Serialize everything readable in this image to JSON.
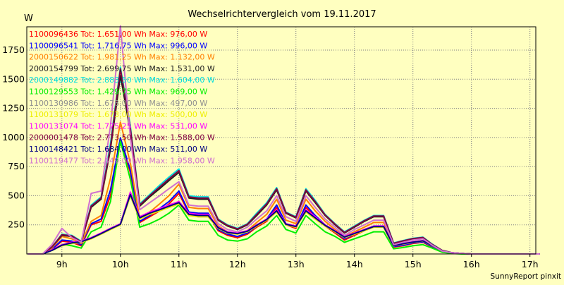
{
  "chart_data": {
    "type": "line",
    "title": "Wechselrichtervergleich vom 19.11.2017",
    "ylabel": "W",
    "xlabel": "",
    "footer": "SunnyReport pinxit",
    "ylim": [
      0,
      1950
    ],
    "xlim": [
      8.4,
      17.1
    ],
    "yticks": [
      250,
      500,
      750,
      1000,
      1250,
      1500,
      1750
    ],
    "xticks": [
      9,
      10,
      11,
      12,
      13,
      14,
      15,
      16,
      17
    ],
    "xtick_labels": [
      "9h",
      "10h",
      "11h",
      "12h",
      "13h",
      "14h",
      "15h",
      "16h",
      "17h"
    ],
    "grid": true,
    "legend_placement": "top-left",
    "x": [
      8.42,
      8.67,
      8.83,
      9.0,
      9.17,
      9.33,
      9.5,
      9.67,
      9.83,
      10.0,
      10.17,
      10.33,
      10.5,
      10.67,
      10.83,
      11.0,
      11.17,
      11.33,
      11.5,
      11.67,
      11.83,
      12.0,
      12.17,
      12.33,
      12.5,
      12.67,
      12.83,
      13.0,
      13.17,
      13.33,
      13.5,
      13.67,
      13.83,
      14.0,
      14.17,
      14.33,
      14.5,
      14.67,
      14.83,
      15.0,
      15.17,
      15.33,
      15.5,
      15.67,
      15.83,
      16.0,
      16.17,
      16.33,
      16.5,
      16.67,
      16.83,
      17.0,
      17.17
    ],
    "series": [
      {
        "name": "1100096436 Tot: 1.651,00 Wh Max: 976,00 W",
        "color": "#ff0000",
        "values": [
          0,
          0,
          40,
          110,
          100,
          70,
          250,
          280,
          500,
          976,
          700,
          270,
          320,
          370,
          430,
          520,
          350,
          340,
          340,
          200,
          160,
          140,
          170,
          230,
          280,
          400,
          250,
          220,
          400,
          320,
          240,
          180,
          120,
          160,
          200,
          230,
          230,
          60,
          70,
          90,
          100,
          60,
          20,
          10,
          5,
          0,
          0,
          0,
          0,
          0,
          0,
          0,
          0
        ]
      },
      {
        "name": "1100096541 Tot: 1.716,75 Wh Max: 996,00 W",
        "color": "#0000ff",
        "values": [
          0,
          0,
          40,
          120,
          110,
          80,
          260,
          300,
          550,
          996,
          720,
          280,
          330,
          390,
          450,
          540,
          360,
          350,
          350,
          210,
          170,
          150,
          180,
          240,
          300,
          420,
          260,
          230,
          420,
          330,
          250,
          190,
          130,
          170,
          210,
          240,
          240,
          65,
          75,
          95,
          105,
          65,
          20,
          10,
          5,
          0,
          0,
          0,
          0,
          0,
          0,
          0,
          0
        ]
      },
      {
        "name": "2000150622 Tot: 1.981,25 Wh Max: 1.132,00 W",
        "color": "#ff8000",
        "values": [
          0,
          0,
          50,
          150,
          130,
          90,
          280,
          330,
          650,
          1132,
          780,
          300,
          360,
          430,
          500,
          600,
          400,
          390,
          390,
          240,
          190,
          170,
          200,
          270,
          340,
          470,
          290,
          260,
          470,
          370,
          280,
          210,
          150,
          190,
          230,
          270,
          270,
          70,
          85,
          105,
          115,
          70,
          25,
          10,
          5,
          0,
          0,
          0,
          0,
          0,
          0,
          0,
          0
        ]
      },
      {
        "name": "2000154799 Tot: 2.699,75 Wh Max: 1.531,00 W",
        "color": "#202020",
        "values": [
          0,
          0,
          60,
          160,
          150,
          100,
          400,
          470,
          900,
          1531,
          1050,
          410,
          490,
          560,
          630,
          700,
          480,
          470,
          470,
          290,
          240,
          210,
          250,
          330,
          420,
          550,
          350,
          310,
          540,
          440,
          330,
          250,
          180,
          230,
          280,
          320,
          320,
          90,
          110,
          130,
          140,
          80,
          30,
          10,
          5,
          0,
          0,
          0,
          0,
          0,
          0,
          0,
          0
        ]
      },
      {
        "name": "2000149882 Tot: 2.883,50 Wh Max: 1.604,00 W",
        "color": "#00dddd",
        "values": [
          0,
          0,
          60,
          170,
          160,
          110,
          420,
          490,
          950,
          1604,
          1100,
          430,
          510,
          590,
          660,
          730,
          500,
          490,
          490,
          300,
          250,
          220,
          260,
          350,
          440,
          570,
          360,
          320,
          560,
          460,
          340,
          260,
          190,
          240,
          290,
          330,
          330,
          95,
          115,
          135,
          145,
          85,
          30,
          10,
          5,
          0,
          0,
          0,
          0,
          0,
          0,
          0,
          0
        ]
      },
      {
        "name": "1100129553 Tot: 1.429,75 Wh Max: 969,00 W",
        "color": "#00ee00",
        "values": [
          0,
          0,
          30,
          80,
          70,
          50,
          190,
          230,
          450,
          969,
          640,
          230,
          260,
          300,
          350,
          420,
          290,
          280,
          280,
          160,
          120,
          110,
          130,
          190,
          240,
          330,
          210,
          180,
          330,
          260,
          190,
          150,
          100,
          130,
          160,
          190,
          190,
          45,
          55,
          70,
          80,
          50,
          15,
          5,
          0,
          0,
          0,
          0,
          0,
          0,
          0,
          0,
          0
        ]
      },
      {
        "name": "1100130986 Tot: 1.678,00 Wh Max: 497,00 W",
        "color": "#909090",
        "values": [
          0,
          0,
          30,
          70,
          90,
          100,
          130,
          170,
          210,
          250,
          497,
          300,
          340,
          370,
          400,
          430,
          330,
          320,
          320,
          220,
          180,
          170,
          190,
          240,
          290,
          360,
          250,
          230,
          360,
          300,
          240,
          190,
          140,
          170,
          200,
          230,
          230,
          70,
          85,
          100,
          110,
          70,
          25,
          10,
          5,
          0,
          0,
          0,
          0,
          0,
          0,
          0,
          0
        ]
      },
      {
        "name": "1100131079 Tot: 1.673,00 Wh Max: 500,00 W",
        "color": "#eeee00",
        "values": [
          0,
          0,
          30,
          70,
          90,
          100,
          130,
          170,
          210,
          250,
          500,
          300,
          340,
          370,
          400,
          430,
          330,
          320,
          320,
          220,
          180,
          170,
          190,
          240,
          290,
          360,
          250,
          230,
          360,
          300,
          240,
          190,
          140,
          170,
          200,
          230,
          230,
          70,
          85,
          100,
          110,
          70,
          25,
          10,
          5,
          0,
          0,
          0,
          0,
          0,
          0,
          0,
          0
        ]
      },
      {
        "name": "1100131074 Tot: 1.775,25 Wh Max: 531,00 W",
        "color": "#ff00ff",
        "values": [
          0,
          0,
          35,
          80,
          100,
          110,
          140,
          180,
          220,
          260,
          531,
          320,
          360,
          390,
          420,
          450,
          350,
          340,
          340,
          230,
          190,
          180,
          200,
          250,
          300,
          380,
          260,
          240,
          380,
          320,
          250,
          200,
          150,
          180,
          210,
          240,
          240,
          75,
          90,
          105,
          115,
          75,
          25,
          10,
          5,
          0,
          0,
          0,
          0,
          0,
          0,
          0,
          0
        ]
      },
      {
        "name": "2000001478 Tot: 2.773,50 Wh Max: 1.588,00 W",
        "color": "#800040",
        "values": [
          0,
          0,
          60,
          165,
          155,
          105,
          410,
          480,
          920,
          1588,
          1080,
          420,
          500,
          575,
          645,
          715,
          490,
          480,
          480,
          295,
          245,
          215,
          255,
          340,
          430,
          560,
          355,
          315,
          550,
          450,
          335,
          255,
          185,
          235,
          285,
          325,
          325,
          92,
          112,
          132,
          142,
          82,
          30,
          10,
          5,
          0,
          0,
          0,
          0,
          0,
          0,
          0,
          0
        ]
      },
      {
        "name": "1100148421 Tot: 1.684,00 Wh Max: 511,00 W",
        "color": "#000080",
        "values": [
          0,
          0,
          30,
          75,
          95,
          105,
          135,
          175,
          215,
          255,
          511,
          310,
          350,
          380,
          410,
          440,
          340,
          330,
          330,
          225,
          185,
          175,
          195,
          245,
          295,
          370,
          255,
          235,
          370,
          310,
          245,
          195,
          145,
          175,
          205,
          235,
          235,
          72,
          88,
          102,
          112,
          72,
          25,
          10,
          5,
          0,
          0,
          0,
          0,
          0,
          0,
          0,
          0
        ]
      },
      {
        "name": "1100119477 Tot: 2.449,00 Wh Max: 1.958,00 W",
        "color": "#d070d0",
        "values": [
          0,
          0,
          80,
          220,
          140,
          100,
          520,
          540,
          1100,
          1958,
          1000,
          380,
          440,
          500,
          560,
          620,
          420,
          410,
          410,
          260,
          210,
          190,
          230,
          300,
          370,
          500,
          320,
          280,
          500,
          400,
          300,
          230,
          160,
          210,
          250,
          290,
          290,
          80,
          100,
          120,
          130,
          75,
          25,
          10,
          5,
          0,
          0,
          0,
          0,
          0,
          0,
          0,
          0
        ]
      }
    ]
  }
}
